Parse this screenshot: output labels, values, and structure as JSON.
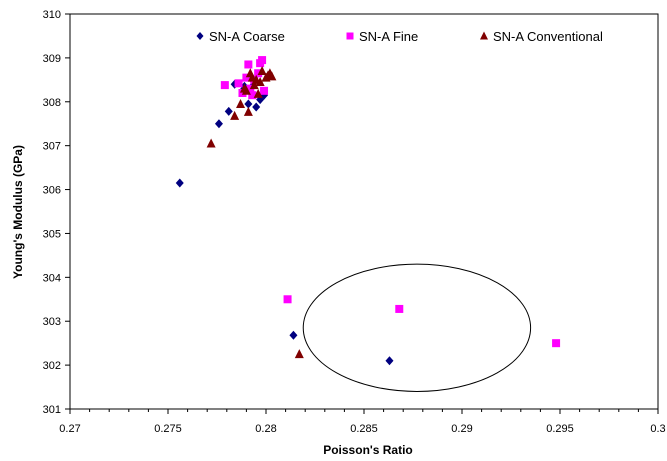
{
  "chart_data": {
    "type": "scatter",
    "xlabel": "Poisson's Ratio",
    "ylabel": "Young's Modulus (GPa)",
    "xlim": [
      0.27,
      0.3
    ],
    "ylim": [
      301,
      310
    ],
    "x_ticks": [
      0.27,
      0.275,
      0.28,
      0.285,
      0.29,
      0.295,
      0.3
    ],
    "x_tick_labels": [
      "0.27",
      "0.275",
      "0.28",
      "0.285",
      "0.29",
      "0.295",
      "0.3"
    ],
    "y_ticks": [
      301,
      302,
      303,
      304,
      305,
      306,
      307,
      308,
      309,
      310
    ],
    "y_tick_labels": [
      "301",
      "302",
      "303",
      "304",
      "305",
      "306",
      "307",
      "308",
      "309",
      "310"
    ],
    "grid": false,
    "legend_position": "top",
    "series": [
      {
        "name": "SN-A Coarse",
        "marker": "diamond",
        "color": "#000080",
        "points": [
          [
            0.2756,
            306.15
          ],
          [
            0.2776,
            307.5
          ],
          [
            0.2781,
            307.78
          ],
          [
            0.2784,
            308.4
          ],
          [
            0.2788,
            308.25
          ],
          [
            0.2791,
            307.95
          ],
          [
            0.2793,
            308.35
          ],
          [
            0.2795,
            307.88
          ],
          [
            0.2797,
            308.05
          ],
          [
            0.2799,
            308.15
          ],
          [
            0.2789,
            308.35
          ],
          [
            0.2792,
            308.55
          ],
          [
            0.2814,
            302.68
          ],
          [
            0.2863,
            302.1
          ]
        ]
      },
      {
        "name": "SN-A Fine",
        "marker": "square",
        "color": "#FF00FF",
        "points": [
          [
            0.2779,
            308.38
          ],
          [
            0.2786,
            308.42
          ],
          [
            0.2788,
            308.2
          ],
          [
            0.279,
            308.55
          ],
          [
            0.2791,
            308.85
          ],
          [
            0.2792,
            308.3
          ],
          [
            0.2794,
            308.5
          ],
          [
            0.2796,
            308.65
          ],
          [
            0.2797,
            308.88
          ],
          [
            0.2798,
            308.95
          ],
          [
            0.2799,
            308.25
          ],
          [
            0.2793,
            308.15
          ],
          [
            0.2811,
            303.5
          ],
          [
            0.2868,
            303.28
          ],
          [
            0.2948,
            302.5
          ]
        ]
      },
      {
        "name": "SN-A Conventional",
        "marker": "triangle",
        "color": "#800000",
        "points": [
          [
            0.2772,
            307.05
          ],
          [
            0.2784,
            307.68
          ],
          [
            0.2787,
            307.95
          ],
          [
            0.2789,
            308.3
          ],
          [
            0.279,
            308.25
          ],
          [
            0.2791,
            307.77
          ],
          [
            0.2792,
            308.65
          ],
          [
            0.2793,
            308.55
          ],
          [
            0.2794,
            308.38
          ],
          [
            0.2795,
            308.5
          ],
          [
            0.2796,
            308.18
          ],
          [
            0.2797,
            308.45
          ],
          [
            0.2798,
            308.7
          ],
          [
            0.28,
            308.55
          ],
          [
            0.2801,
            308.6
          ],
          [
            0.2802,
            308.65
          ],
          [
            0.2803,
            308.58
          ],
          [
            0.2817,
            302.25
          ]
        ]
      }
    ],
    "annotations": [
      {
        "type": "ellipse",
        "cx": 0.2877,
        "cy": 302.85,
        "rx": 0.0058,
        "ry": 1.45
      }
    ]
  }
}
